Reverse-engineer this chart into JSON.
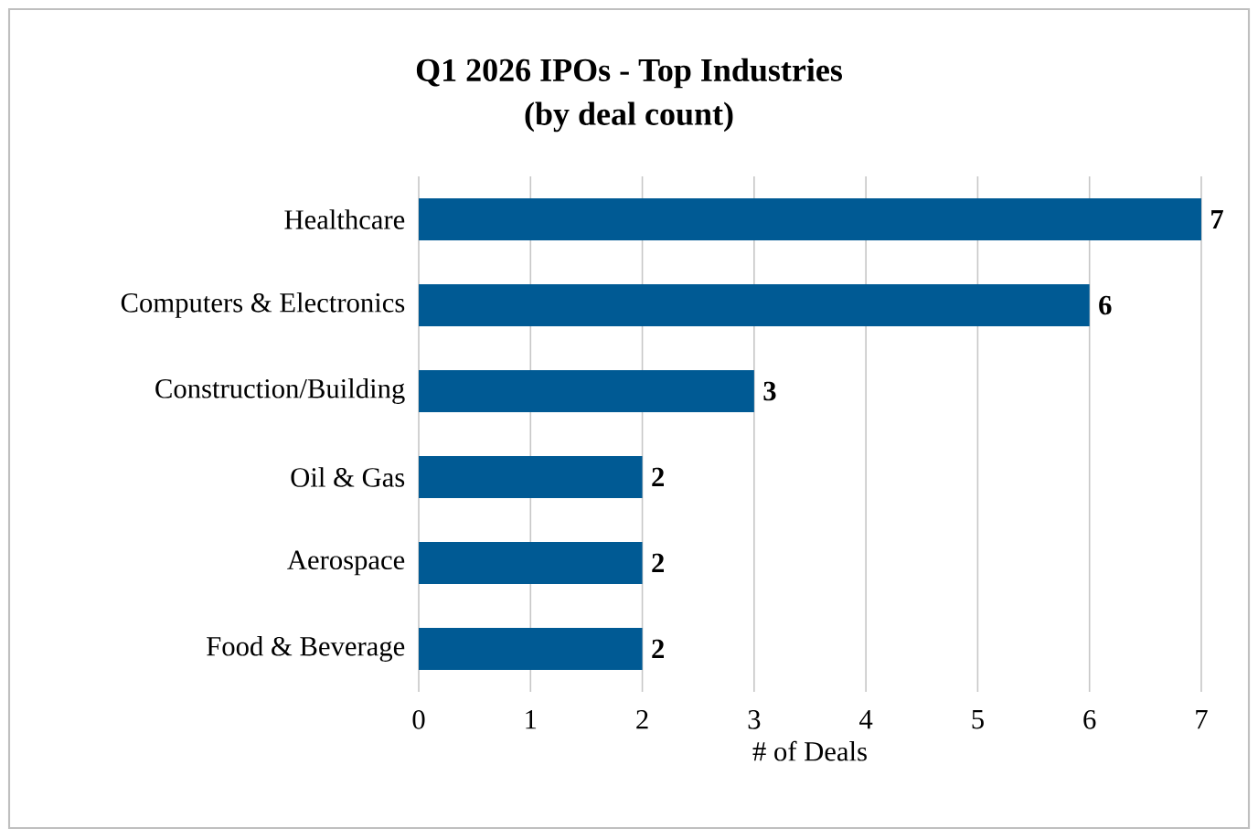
{
  "chart_data": {
    "type": "bar",
    "orientation": "horizontal",
    "title": "Q1 2026 IPOs - Top Industries",
    "subtitle": "(by deal count)",
    "xlabel": "# of Deals",
    "categories": [
      "Healthcare",
      "Computers & Electronics",
      "Construction/Building",
      "Oil & Gas",
      "Aerospace",
      "Food & Beverage"
    ],
    "values": [
      7,
      6,
      3,
      2,
      2,
      2
    ],
    "color": "#005a94",
    "xlim": [
      0,
      7
    ],
    "xticks": [
      0,
      1,
      2,
      3,
      4,
      5,
      6,
      7
    ],
    "grid": "x",
    "data_labels": true
  }
}
